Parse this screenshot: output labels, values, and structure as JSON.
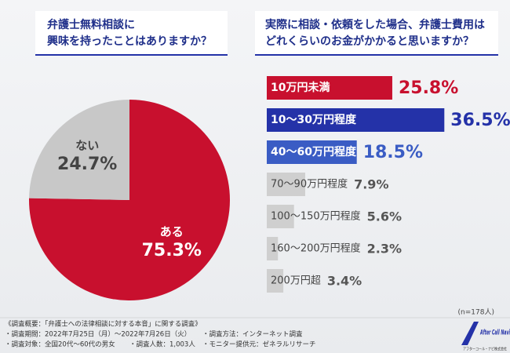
{
  "chart_data": [
    {
      "type": "pie",
      "title": [
        "弁護士無料相談に",
        "興味を持ったことはありますか？"
      ],
      "categories": [
        "ある",
        "ない"
      ],
      "values": [
        75.3,
        24.7
      ],
      "value_labels": [
        "75.3%",
        "24.7%"
      ],
      "colors": [
        "#c8102e",
        "#c8c8c8"
      ]
    },
    {
      "type": "hbar",
      "title": [
        "実際に相談・依頼をした場合、弁護士費用は",
        "どれくらいのお金がかかると思いますか？"
      ],
      "categories": [
        "10万円未満",
        "10〜30万円程度",
        "40〜60万円程度",
        "70〜90万円程度",
        "100〜150万円程度",
        "160〜200万円程度",
        "200万円超"
      ],
      "values": [
        25.8,
        36.5,
        18.5,
        7.9,
        5.6,
        2.3,
        3.4
      ],
      "value_labels": [
        "25.8%",
        "36.5%",
        "18.5%",
        "7.9%",
        "5.6%",
        "2.3%",
        "3.4%"
      ],
      "colors": [
        "#c8102e",
        "#2432a8",
        "#3a5cc4",
        "#cfcfcf",
        "#cfcfcf",
        "#cfcfcf",
        "#cfcfcf"
      ],
      "note": "(n=178人)"
    }
  ],
  "footnote": {
    "heading": "《調査概要：「弁護士への法律相談に対する本音」に関する調査》",
    "items": [
      "・調査期間：2022年7月25日（月）〜2022年7月26日（火）",
      "・調査方法：インターネット調査",
      "・調査対象：全国20代〜60代の男女",
      "・調査人数：1,003人",
      "・モニター提供元：ゼネラルリサーチ"
    ]
  },
  "logo": {
    "name": "After Call Navi",
    "company": "アフターコール・ナビ株式会社"
  }
}
